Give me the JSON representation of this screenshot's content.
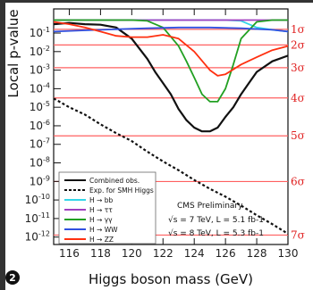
{
  "chart_data": {
    "type": "line",
    "xlabel": "Higgs boson mass (GeV)",
    "ylabel": "Local p-value",
    "xlim": [
      115,
      130
    ],
    "ylim_log10": [
      -12.4,
      0.3
    ],
    "y_scale": "log",
    "x_ticks": [
      116,
      118,
      120,
      122,
      124,
      126,
      128,
      130
    ],
    "y_ticks": [
      {
        "exp": 1,
        "text": "1"
      },
      {
        "exp": -1,
        "text": "10-1"
      },
      {
        "exp": -2,
        "text": "10-2"
      },
      {
        "exp": -3,
        "text": "10-3"
      },
      {
        "exp": -4,
        "text": "10-4"
      },
      {
        "exp": -5,
        "text": "10-5"
      },
      {
        "exp": -6,
        "text": "10-6"
      },
      {
        "exp": -7,
        "text": "10-7"
      },
      {
        "exp": -8,
        "text": "10-8"
      },
      {
        "exp": -9,
        "text": "10-9"
      },
      {
        "exp": -10,
        "text": "10-10"
      },
      {
        "exp": -11,
        "text": "10-11"
      },
      {
        "exp": -12,
        "text": "10-12"
      }
    ],
    "sigma_lines": [
      {
        "label": "1σ",
        "p": 0.1587
      },
      {
        "label": "2σ",
        "p": 0.02275
      },
      {
        "label": "3σ",
        "p": 0.00135
      },
      {
        "label": "4σ",
        "p": 3.17e-05
      },
      {
        "label": "5σ",
        "p": 2.87e-07
      },
      {
        "label": "6σ",
        "p": 9.87e-10
      },
      {
        "label": "7σ",
        "p": 1.28e-12
      }
    ],
    "series": [
      {
        "name": "Combined obs.",
        "color": "#111111",
        "style": "solid",
        "x": [
          115,
          116,
          117,
          118,
          119,
          120,
          121,
          121.5,
          122,
          122.5,
          123,
          123.5,
          124,
          124.5,
          125,
          125.5,
          126,
          126.5,
          127,
          127.5,
          128,
          129,
          130
        ],
        "y": [
          0.3,
          0.35,
          0.3,
          0.28,
          0.2,
          0.05,
          0.004,
          0.0008,
          0.0002,
          5e-05,
          8e-06,
          2e-06,
          8e-07,
          5e-07,
          5e-07,
          8e-07,
          3e-06,
          1e-05,
          5e-05,
          0.0002,
          0.0008,
          0.003,
          0.006
        ]
      },
      {
        "name": "Exp. for SMH Higgs",
        "color": "#111111",
        "style": "dashed",
        "x": [
          115,
          116,
          117,
          118,
          119,
          120,
          121,
          122,
          123,
          124,
          125,
          126,
          127,
          128,
          129,
          130
        ],
        "y": [
          3e-05,
          1e-05,
          4e-06,
          1.2e-06,
          4e-07,
          1.5e-07,
          4e-08,
          1.2e-08,
          4e-09,
          1.2e-09,
          4e-10,
          1.5e-10,
          5e-11,
          1.5e-11,
          5e-12,
          1.5e-12
        ]
      },
      {
        "name": "H → bb",
        "color": "#33d6e8",
        "style": "solid",
        "x": [
          115,
          118,
          120,
          122,
          124,
          126,
          127,
          128,
          129,
          130
        ],
        "y": [
          0.5,
          0.5,
          0.5,
          0.5,
          0.5,
          0.5,
          0.45,
          0.2,
          0.15,
          0.12
        ]
      },
      {
        "name": "H → ττ",
        "color": "#a040c0",
        "style": "solid",
        "x": [
          115,
          117,
          119,
          121,
          123,
          125,
          127,
          129,
          130
        ],
        "y": [
          0.5,
          0.5,
          0.5,
          0.5,
          0.5,
          0.5,
          0.5,
          0.5,
          0.5
        ]
      },
      {
        "name": "H → γγ",
        "color": "#22a022",
        "style": "solid",
        "x": [
          115,
          117,
          119,
          120,
          121,
          122,
          123,
          123.5,
          124,
          124.5,
          125,
          125.5,
          126,
          126.5,
          127,
          128,
          129,
          130
        ],
        "y": [
          0.5,
          0.5,
          0.5,
          0.5,
          0.45,
          0.2,
          0.02,
          0.003,
          0.0004,
          5e-05,
          2e-05,
          2e-05,
          0.0001,
          0.002,
          0.05,
          0.4,
          0.5,
          0.5
        ]
      },
      {
        "name": "H → WW",
        "color": "#3050e0",
        "style": "solid",
        "x": [
          115,
          117,
          119,
          121,
          123,
          125,
          127,
          129,
          130
        ],
        "y": [
          0.12,
          0.14,
          0.16,
          0.18,
          0.2,
          0.2,
          0.18,
          0.15,
          0.12
        ]
      },
      {
        "name": "H → ZZ",
        "color": "#ff3010",
        "style": "solid",
        "x": [
          115,
          116,
          117,
          118,
          119,
          120,
          121,
          122,
          123,
          124,
          125,
          125.5,
          126,
          127,
          128,
          129,
          130
        ],
        "y": [
          0.4,
          0.3,
          0.2,
          0.12,
          0.07,
          0.06,
          0.06,
          0.08,
          0.05,
          0.01,
          0.001,
          0.0005,
          0.0006,
          0.002,
          0.005,
          0.012,
          0.02
        ]
      }
    ],
    "annotations": [
      "CMS Preliminary",
      "√s = 7 TeV, L = 5.1 fb-1",
      "√s = 8 TeV, L = 5.3 fb-1"
    ],
    "legend_placement": "bottom-left"
  },
  "badge": "2"
}
